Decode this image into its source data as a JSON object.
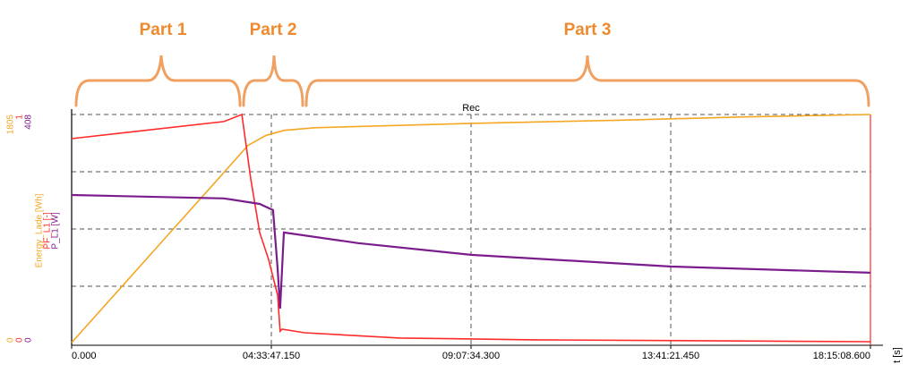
{
  "chart_data": {
    "type": "line",
    "title": "Rec",
    "x_label": "t [s]",
    "annotations": [
      "Part 1",
      "Part 2",
      "Part 3"
    ],
    "xlim": [
      0,
      65708.6
    ],
    "xticks": [
      {
        "value": 0,
        "label": "0.000"
      },
      {
        "value": 16427.15,
        "label": "04:33:47.150"
      },
      {
        "value": 32854.3,
        "label": "09:07:34.300"
      },
      {
        "value": 49281.45,
        "label": "13:41:21.450"
      },
      {
        "value": 65708.6,
        "label": "18:15:08.600"
      }
    ],
    "grid": true,
    "y_axes": [
      {
        "label": "Energy_Lade [Wh]",
        "ylim": [
          0,
          1805
        ],
        "yticks": [
          0,
          1805
        ],
        "color": "#f5a623"
      },
      {
        "label": "PF_L1 [-]",
        "ylim": [
          0,
          1
        ],
        "yticks": [
          0,
          1
        ],
        "color": "#ff2a2a"
      },
      {
        "label": "P_L1 [W]",
        "ylim": [
          0,
          408
        ],
        "yticks": [
          0,
          408
        ],
        "color": "#7b1c8c"
      }
    ],
    "series": [
      {
        "name": "Energy_Lade",
        "color": "#f5a623",
        "axis": 0,
        "x": [
          0,
          4000,
          8000,
          12000,
          14500,
          16000,
          17500,
          20000,
          32900,
          45000,
          55000,
          65708.6
        ],
        "values": [
          0,
          430,
          860,
          1290,
          1560,
          1640,
          1680,
          1700,
          1735,
          1760,
          1785,
          1805
        ]
      },
      {
        "name": "PF_L1",
        "color": "#ff2a2a",
        "axis": 1,
        "x": [
          0,
          6000,
          12520,
          14000,
          14730,
          15470,
          16200,
          16940,
          17150,
          17310,
          19150,
          27000,
          38000,
          65708.6
        ],
        "values": [
          0.894,
          0.93,
          0.969,
          1.0,
          0.718,
          0.482,
          0.365,
          0.208,
          0.05,
          0.059,
          0.043,
          0.02,
          0.012,
          0.004
        ]
      },
      {
        "name": "P_L1",
        "color": "#7b1c8c",
        "axis": 2,
        "x": [
          0,
          12520,
          15470,
          16570,
          16940,
          17150,
          17460,
          23570,
          32850,
          49350,
          65708.6
        ],
        "values": [
          264,
          258,
          248,
          237,
          133,
          61,
          197,
          178,
          157,
          136,
          125
        ]
      }
    ]
  }
}
